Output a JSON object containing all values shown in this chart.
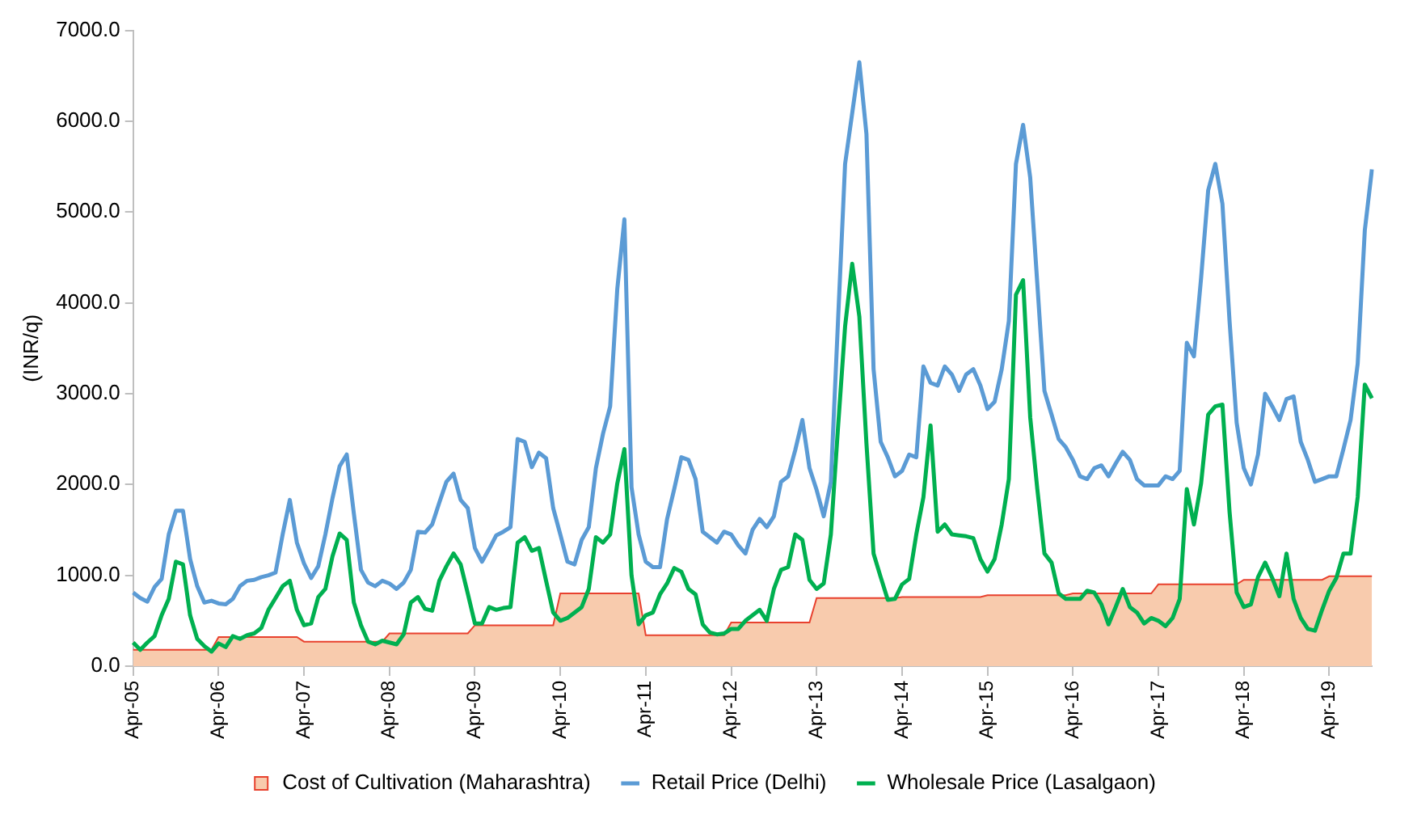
{
  "chart_data": {
    "type": "line",
    "ylabel": "(INR/q)",
    "legend": "bottom",
    "ylim": [
      0,
      7000
    ],
    "yticks": [
      {
        "value": 0,
        "label": "0.0"
      },
      {
        "value": 1000,
        "label": "1000.0"
      },
      {
        "value": 2000,
        "label": "2000.0"
      },
      {
        "value": 3000,
        "label": "3000.0"
      },
      {
        "value": 4000,
        "label": "4000.0"
      },
      {
        "value": 5000,
        "label": "5000.0"
      },
      {
        "value": 6000,
        "label": "6000.0"
      },
      {
        "value": 7000,
        "label": "7000.0"
      }
    ],
    "categories": [
      "Apr-05",
      null,
      null,
      null,
      null,
      null,
      null,
      null,
      null,
      null,
      null,
      null,
      "Apr-06",
      null,
      null,
      null,
      null,
      null,
      null,
      null,
      null,
      null,
      null,
      null,
      "Apr-07",
      null,
      null,
      null,
      null,
      null,
      null,
      null,
      null,
      null,
      null,
      null,
      "Apr-08",
      null,
      null,
      null,
      null,
      null,
      null,
      null,
      null,
      null,
      null,
      null,
      "Apr-09",
      null,
      null,
      null,
      null,
      null,
      null,
      null,
      null,
      null,
      null,
      null,
      "Apr-10",
      null,
      null,
      null,
      null,
      null,
      null,
      null,
      null,
      null,
      null,
      null,
      "Apr-11",
      null,
      null,
      null,
      null,
      null,
      null,
      null,
      null,
      null,
      null,
      null,
      "Apr-12",
      null,
      null,
      null,
      null,
      null,
      null,
      null,
      null,
      null,
      null,
      null,
      "Apr-13",
      null,
      null,
      null,
      null,
      null,
      null,
      null,
      null,
      null,
      null,
      null,
      "Apr-14",
      null,
      null,
      null,
      null,
      null,
      null,
      null,
      null,
      null,
      null,
      null,
      "Apr-15",
      null,
      null,
      null,
      null,
      null,
      null,
      null,
      null,
      null,
      null,
      null,
      "Apr-16",
      null,
      null,
      null,
      null,
      null,
      null,
      null,
      null,
      null,
      null,
      null,
      "Apr-17",
      null,
      null,
      null,
      null,
      null,
      null,
      null,
      null,
      null,
      null,
      null,
      "Apr-18",
      null,
      null,
      null,
      null,
      null,
      null,
      null,
      null,
      null,
      null,
      null,
      "Apr-19",
      null,
      null,
      null,
      null,
      null,
      null
    ],
    "series": [
      {
        "name": "Cost of Cultivation (Maharashtra)",
        "type": "area",
        "color": "#f8cbad",
        "values": [
          180,
          180,
          180,
          180,
          180,
          180,
          180,
          180,
          180,
          180,
          180,
          180,
          320,
          320,
          320,
          320,
          320,
          320,
          320,
          320,
          320,
          320,
          320,
          320,
          270,
          270,
          270,
          270,
          270,
          270,
          270,
          270,
          270,
          270,
          270,
          270,
          360,
          360,
          360,
          360,
          360,
          360,
          360,
          360,
          360,
          360,
          360,
          360,
          450,
          450,
          450,
          450,
          450,
          450,
          450,
          450,
          450,
          450,
          450,
          450,
          800,
          800,
          800,
          800,
          800,
          800,
          800,
          800,
          800,
          800,
          800,
          800,
          340,
          340,
          340,
          340,
          340,
          340,
          340,
          340,
          340,
          340,
          340,
          340,
          480,
          480,
          480,
          480,
          480,
          480,
          480,
          480,
          480,
          480,
          480,
          480,
          750,
          750,
          750,
          750,
          750,
          750,
          750,
          750,
          750,
          750,
          750,
          750,
          760,
          760,
          760,
          760,
          760,
          760,
          760,
          760,
          760,
          760,
          760,
          760,
          780,
          780,
          780,
          780,
          780,
          780,
          780,
          780,
          780,
          780,
          780,
          780,
          800,
          800,
          800,
          800,
          800,
          800,
          800,
          800,
          800,
          800,
          800,
          800,
          900,
          900,
          900,
          900,
          900,
          900,
          900,
          900,
          900,
          900,
          900,
          900,
          950,
          950,
          950,
          950,
          950,
          950,
          950,
          950,
          950,
          950,
          950,
          950,
          990,
          990,
          990,
          990,
          990,
          990,
          990
        ]
      },
      {
        "name": "Retail Price (Delhi)",
        "type": "line",
        "color": "#5b9bd5",
        "values": [
          810,
          750,
          710,
          870,
          960,
          1450,
          1710,
          1710,
          1180,
          880,
          700,
          720,
          690,
          680,
          740,
          880,
          940,
          950,
          980,
          1000,
          1030,
          1450,
          1830,
          1360,
          1130,
          970,
          1100,
          1450,
          1850,
          2200,
          2330,
          1680,
          1060,
          920,
          880,
          940,
          910,
          850,
          920,
          1060,
          1480,
          1470,
          1560,
          1800,
          2030,
          2120,
          1830,
          1740,
          1300,
          1150,
          1290,
          1440,
          1480,
          1530,
          2500,
          2470,
          2190,
          2350,
          2290,
          1740,
          1450,
          1150,
          1120,
          1390,
          1530,
          2180,
          2560,
          2860,
          4150,
          4920,
          1970,
          1450,
          1150,
          1090,
          1090,
          1620,
          1950,
          2300,
          2270,
          2060,
          1480,
          1420,
          1360,
          1480,
          1450,
          1330,
          1240,
          1500,
          1620,
          1530,
          1650,
          2030,
          2090,
          2380,
          2710,
          2180,
          1940,
          1650,
          2030,
          3790,
          5530,
          6090,
          6650,
          5860,
          3270,
          2470,
          2300,
          2090,
          2150,
          2330,
          2300,
          3300,
          3120,
          3090,
          3300,
          3210,
          3030,
          3210,
          3270,
          3090,
          2830,
          2910,
          3270,
          3800,
          5530,
          5960,
          5380,
          4210,
          3030,
          2770,
          2500,
          2410,
          2270,
          2090,
          2060,
          2180,
          2210,
          2090,
          2230,
          2360,
          2270,
          2060,
          1990,
          1990,
          1990,
          2090,
          2060,
          2150,
          3560,
          3410,
          4270,
          5240,
          5530,
          5090,
          3800,
          2680,
          2180,
          2000,
          2330,
          3000,
          2860,
          2710,
          2940,
          2970,
          2470,
          2270,
          2030,
          2060,
          2090,
          2090,
          2390,
          2710,
          3330,
          4800,
          5470
        ]
      },
      {
        "name": "Wholesale Price (Lasalgaon)",
        "type": "line",
        "color": "#00b050",
        "values": [
          260,
          180,
          260,
          330,
          560,
          740,
          1150,
          1120,
          560,
          300,
          220,
          160,
          250,
          210,
          330,
          300,
          340,
          360,
          420,
          620,
          750,
          880,
          940,
          620,
          450,
          470,
          760,
          850,
          1210,
          1460,
          1390,
          700,
          450,
          270,
          240,
          280,
          260,
          240,
          350,
          700,
          760,
          630,
          610,
          940,
          1100,
          1240,
          1120,
          800,
          470,
          470,
          650,
          620,
          640,
          650,
          1360,
          1420,
          1270,
          1300,
          940,
          590,
          500,
          530,
          590,
          650,
          850,
          1420,
          1360,
          1450,
          2010,
          2390,
          1000,
          460,
          560,
          590,
          790,
          910,
          1080,
          1040,
          850,
          790,
          460,
          370,
          350,
          360,
          410,
          410,
          500,
          560,
          620,
          500,
          850,
          1060,
          1090,
          1450,
          1390,
          950,
          850,
          910,
          1450,
          2620,
          3740,
          4430,
          3850,
          2450,
          1240,
          980,
          730,
          740,
          900,
          960,
          1450,
          1860,
          2650,
          1480,
          1560,
          1450,
          1440,
          1430,
          1410,
          1180,
          1040,
          1180,
          1560,
          2060,
          4090,
          4250,
          2740,
          1950,
          1240,
          1140,
          800,
          740,
          740,
          740,
          830,
          810,
          680,
          460,
          650,
          850,
          650,
          590,
          470,
          530,
          500,
          440,
          530,
          740,
          1950,
          1560,
          2010,
          2770,
          2860,
          2880,
          1700,
          810,
          650,
          680,
          980,
          1140,
          970,
          770,
          1240,
          740,
          530,
          410,
          390,
          620,
          830,
          970,
          1240,
          1240,
          1860,
          3100,
          2950
        ]
      }
    ]
  }
}
